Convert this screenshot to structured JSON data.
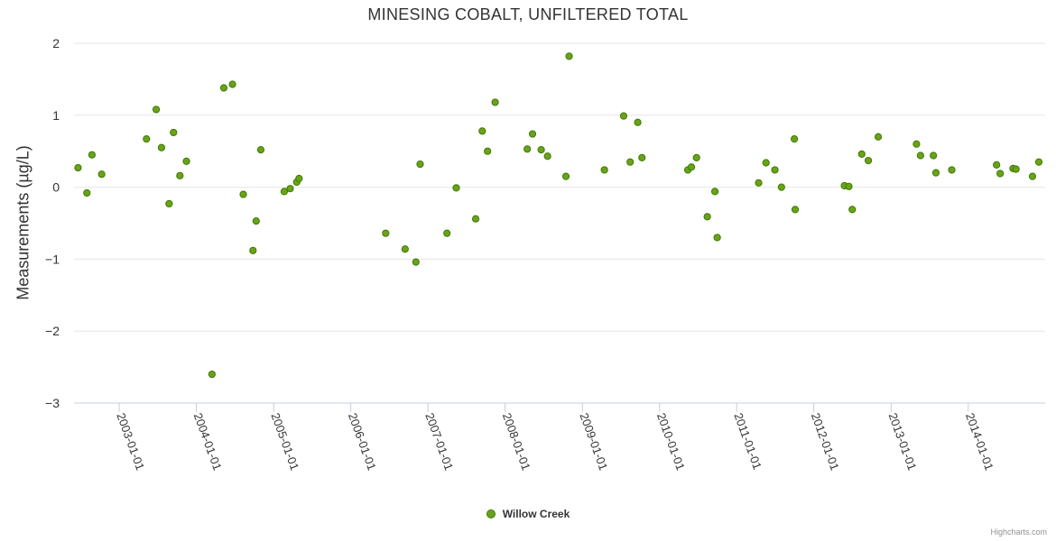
{
  "chart_data": {
    "type": "scatter",
    "title": "MINESING COBALT, UNFILTERED TOTAL",
    "xlabel": "",
    "ylabel": "Measurements (µg/L)",
    "ylim": [
      -3,
      2
    ],
    "yticks": [
      2,
      1,
      0,
      -1,
      -2,
      -3
    ],
    "ytick_labels": [
      "2",
      "1",
      "0",
      "−1",
      "−2",
      "−3"
    ],
    "xlim": [
      "2002-06-01",
      "2014-12-31"
    ],
    "xticks": [
      "2003-01-01",
      "2004-01-01",
      "2005-01-01",
      "2006-01-01",
      "2007-01-01",
      "2008-01-01",
      "2009-01-01",
      "2010-01-01",
      "2011-01-01",
      "2012-01-01",
      "2013-01-01",
      "2014-01-01"
    ],
    "grid": true,
    "legend": "bottom-center",
    "series": [
      {
        "name": "Willow Creek",
        "color": "#6aa31a",
        "points": [
          [
            "2002-06-20",
            0.27
          ],
          [
            "2002-08-01",
            -0.08
          ],
          [
            "2002-08-25",
            0.45
          ],
          [
            "2002-10-10",
            0.18
          ],
          [
            "2003-05-10",
            0.67
          ],
          [
            "2003-06-25",
            1.08
          ],
          [
            "2003-07-20",
            0.55
          ],
          [
            "2003-08-25",
            -0.23
          ],
          [
            "2003-09-15",
            0.76
          ],
          [
            "2003-10-15",
            0.16
          ],
          [
            "2003-11-15",
            0.36
          ],
          [
            "2004-03-15",
            -2.6
          ],
          [
            "2004-05-10",
            1.38
          ],
          [
            "2004-06-20",
            1.43
          ],
          [
            "2004-08-10",
            -0.1
          ],
          [
            "2004-09-25",
            -0.88
          ],
          [
            "2004-10-10",
            -0.47
          ],
          [
            "2004-11-01",
            0.52
          ],
          [
            "2005-02-20",
            -0.06
          ],
          [
            "2005-03-20",
            -0.02
          ],
          [
            "2005-04-20",
            0.07
          ],
          [
            "2005-05-01",
            0.12
          ],
          [
            "2006-06-15",
            -0.64
          ],
          [
            "2006-09-15",
            -0.86
          ],
          [
            "2006-11-05",
            -1.04
          ],
          [
            "2006-11-25",
            0.32
          ],
          [
            "2007-04-01",
            -0.64
          ],
          [
            "2007-05-15",
            -0.01
          ],
          [
            "2007-08-15",
            -0.44
          ],
          [
            "2007-09-15",
            0.78
          ],
          [
            "2007-10-10",
            0.5
          ],
          [
            "2007-11-15",
            1.18
          ],
          [
            "2008-04-15",
            0.53
          ],
          [
            "2008-05-10",
            0.74
          ],
          [
            "2008-06-20",
            0.52
          ],
          [
            "2008-07-20",
            0.43
          ],
          [
            "2008-10-15",
            0.15
          ],
          [
            "2008-10-30",
            1.82
          ],
          [
            "2009-04-15",
            0.24
          ],
          [
            "2009-07-15",
            0.99
          ],
          [
            "2009-08-15",
            0.35
          ],
          [
            "2009-09-20",
            0.9
          ],
          [
            "2009-10-10",
            0.41
          ],
          [
            "2010-05-15",
            0.24
          ],
          [
            "2010-06-01",
            0.28
          ],
          [
            "2010-06-25",
            0.41
          ],
          [
            "2010-08-15",
            -0.41
          ],
          [
            "2010-09-20",
            -0.06
          ],
          [
            "2010-10-01",
            -0.7
          ],
          [
            "2011-04-15",
            0.06
          ],
          [
            "2011-05-20",
            0.34
          ],
          [
            "2011-07-01",
            0.24
          ],
          [
            "2011-08-01",
            0.0
          ],
          [
            "2011-10-01",
            0.67
          ],
          [
            "2011-10-05",
            -0.31
          ],
          [
            "2012-05-25",
            0.02
          ],
          [
            "2012-06-15",
            0.01
          ],
          [
            "2012-07-01",
            -0.31
          ],
          [
            "2012-08-15",
            0.46
          ],
          [
            "2012-09-15",
            0.37
          ],
          [
            "2012-11-01",
            0.7
          ],
          [
            "2013-05-01",
            0.6
          ],
          [
            "2013-05-20",
            0.44
          ],
          [
            "2013-07-20",
            0.44
          ],
          [
            "2013-08-01",
            0.2
          ],
          [
            "2013-10-15",
            0.24
          ],
          [
            "2014-05-15",
            0.31
          ],
          [
            "2014-06-01",
            0.19
          ],
          [
            "2014-08-01",
            0.26
          ],
          [
            "2014-08-15",
            0.25
          ],
          [
            "2014-11-01",
            0.15
          ],
          [
            "2014-12-01",
            0.35
          ]
        ]
      }
    ],
    "credits": "Highcharts.com"
  }
}
